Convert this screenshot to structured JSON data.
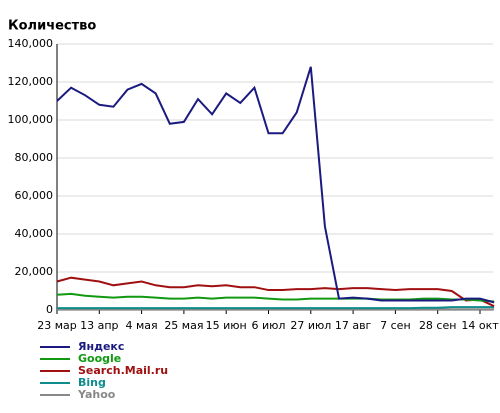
{
  "chart_data": {
    "type": "line",
    "title": "Количество",
    "categories": [
      "23 мар",
      null,
      null,
      "13 апр",
      null,
      null,
      "4 мая",
      null,
      null,
      "25 мая",
      null,
      null,
      "15 июн",
      null,
      null,
      "6 июл",
      null,
      null,
      "27 июл",
      null,
      null,
      "17 авг",
      null,
      null,
      "7 сен",
      null,
      null,
      "28 сен",
      null,
      null,
      "14 окт",
      null
    ],
    "series": [
      {
        "name": "Яндекс",
        "color": "#1a1a80",
        "values": [
          110000,
          117000,
          113000,
          108000,
          107000,
          116000,
          119000,
          114000,
          98000,
          99000,
          111000,
          103000,
          114000,
          109000,
          117000,
          93000,
          93000,
          104000,
          128000,
          44000,
          6000,
          6500,
          6000,
          5000,
          5000,
          5000,
          5000,
          5000,
          5000,
          6000,
          6000,
          4000
        ]
      },
      {
        "name": "Google",
        "color": "#119911",
        "values": [
          8000,
          8500,
          7500,
          7000,
          6500,
          7000,
          7000,
          6500,
          6000,
          6000,
          6500,
          6000,
          6500,
          6500,
          6500,
          6000,
          5500,
          5500,
          6000,
          6000,
          6000,
          6000,
          6000,
          5500,
          5500,
          5500,
          6000,
          6000,
          5500,
          5500,
          5000,
          4500
        ]
      },
      {
        "name": "Search.Mail.ru",
        "color": "#a01010",
        "values": [
          15000,
          17000,
          16000,
          15000,
          13000,
          14000,
          15000,
          13000,
          12000,
          12000,
          13000,
          12500,
          13000,
          12000,
          12000,
          10500,
          10500,
          11000,
          11000,
          11500,
          11000,
          11500,
          11500,
          11000,
          10500,
          11000,
          11000,
          11000,
          10000,
          5000,
          5500,
          2000
        ]
      },
      {
        "name": "Bing",
        "color": "#0f8c8c",
        "values": [
          1000,
          1000,
          1000,
          1000,
          1000,
          1000,
          1000,
          1000,
          1000,
          1000,
          1000,
          1000,
          1000,
          1000,
          1000,
          1000,
          1000,
          1000,
          1000,
          1000,
          1000,
          1000,
          1000,
          1000,
          1000,
          1000,
          1200,
          1200,
          1500,
          1500,
          1500,
          1500
        ]
      },
      {
        "name": "Yahoo",
        "color": "#888888",
        "values": [
          300,
          300,
          300,
          300,
          300,
          300,
          300,
          300,
          300,
          300,
          300,
          300,
          300,
          300,
          300,
          300,
          300,
          300,
          300,
          300,
          300,
          300,
          300,
          300,
          300,
          300,
          300,
          300,
          300,
          300,
          300,
          300
        ]
      }
    ],
    "ylim": [
      0,
      140000
    ],
    "yticks": [
      0,
      {
        "value": 20000,
        "label": "20,000"
      },
      {
        "value": 40000,
        "label": "40,000"
      },
      {
        "value": 60000,
        "label": "60,000"
      },
      {
        "value": 80000,
        "label": "80,000"
      },
      {
        "value": 100000,
        "label": "100,000"
      },
      {
        "value": 120000,
        "label": "120,000"
      },
      {
        "value": 140000,
        "label": "140,000"
      }
    ],
    "grid": true
  }
}
